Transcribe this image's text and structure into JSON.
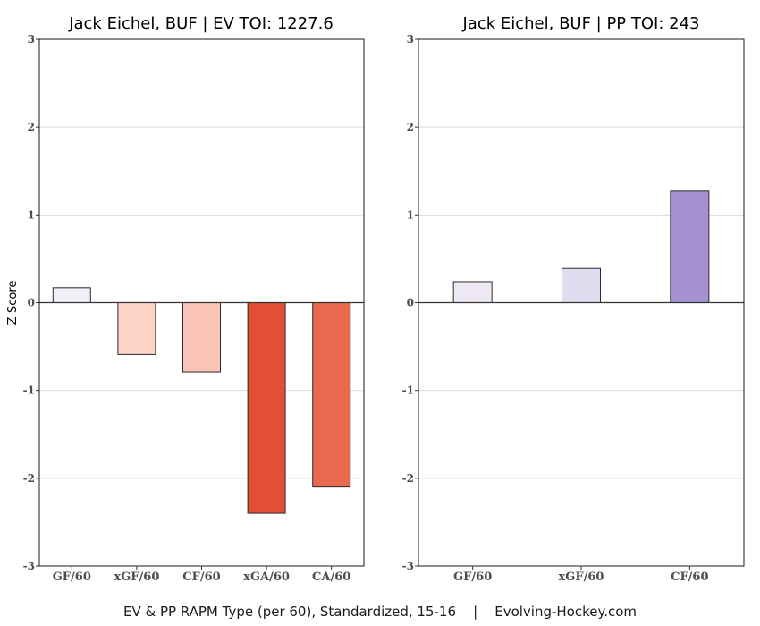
{
  "chart_data": [
    {
      "type": "bar",
      "title": "Jack Eichel, BUF  |  EV TOI: 1227.6",
      "ylabel": "Z-Score",
      "ylim": [
        -3,
        3
      ],
      "yticks": [
        "-3",
        "-2",
        "-1",
        "0",
        "1",
        "2",
        "3"
      ],
      "grid": true,
      "categories": [
        "GF/60",
        "xGF/60",
        "CF/60",
        "xGA/60",
        "CA/60"
      ],
      "values": [
        0.17,
        -0.59,
        -0.79,
        -2.4,
        -2.1
      ],
      "colors": [
        "#f1eef8",
        "#fdd3c7",
        "#fcc4b6",
        "#e24f36",
        "#ea6a4f"
      ]
    },
    {
      "type": "bar",
      "title": "Jack Eichel, BUF  |  PP TOI: 243",
      "ylabel": "",
      "ylim": [
        -3,
        3
      ],
      "yticks": [
        "-3",
        "-2",
        "-1",
        "0",
        "1",
        "2",
        "3"
      ],
      "grid": true,
      "categories": [
        "GF/60",
        "xGF/60",
        "CF/60"
      ],
      "values": [
        0.24,
        0.39,
        1.27
      ],
      "colors": [
        "#ede8f4",
        "#e2dcf0",
        "#a691d0"
      ]
    }
  ],
  "caption": "EV & PP RAPM Type (per 60), Standardized, 15-16    |    Evolving-Hockey.com"
}
